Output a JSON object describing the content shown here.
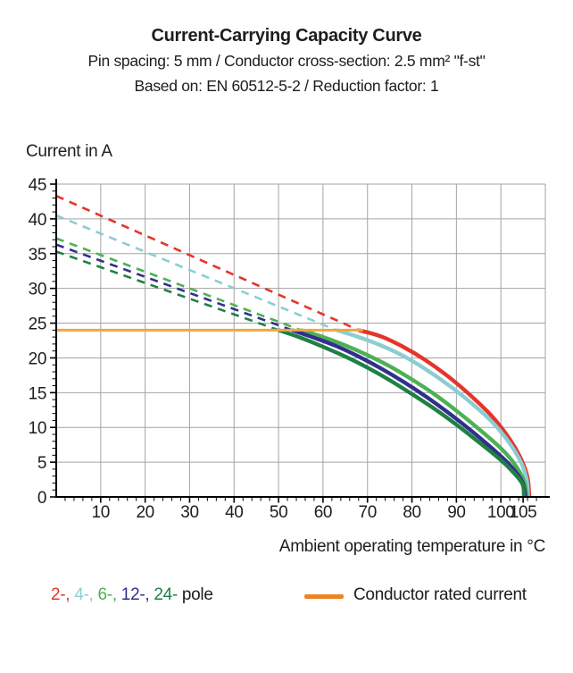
{
  "header": {
    "title": "Current-Carrying Capacity Curve",
    "subtitle1": "Pin spacing: 5 mm / Conductor cross-section: 2.5 mm² \"f-st\"",
    "subtitle2": "Based on: EN 60512-5-2 / Reduction factor: 1"
  },
  "axes": {
    "y_title": "Current in A",
    "x_title": "Ambient operating temperature in °C"
  },
  "legend": {
    "poles": [
      {
        "label": "2-,",
        "color": "#e5352b"
      },
      {
        "label": "4-,",
        "color": "#8ccdd3"
      },
      {
        "label": "6-,",
        "color": "#4db153"
      },
      {
        "label": "12-,",
        "color": "#31308e"
      },
      {
        "label": "24-",
        "color": "#1f8044"
      }
    ],
    "poles_suffix": "pole",
    "rated": {
      "label": "Conductor rated current",
      "color": "#ef8322"
    }
  },
  "chart_data": {
    "type": "line",
    "title": "Current-Carrying Capacity Curve",
    "xlabel": "Ambient operating temperature in °C",
    "ylabel": "Current in A",
    "xlim": [
      0,
      110
    ],
    "ylim": [
      0,
      45
    ],
    "x_tick_labels": [
      10,
      20,
      30,
      40,
      50,
      60,
      70,
      80,
      90,
      100,
      105
    ],
    "y_tick_labels": [
      0,
      5,
      10,
      15,
      20,
      25,
      30,
      35,
      40,
      45
    ],
    "x_grid_step": 10,
    "y_grid_step": 5,
    "x_minor_step": 2,
    "y_minor_step": 1,
    "grid": true,
    "grid_color": "#a3a3a3",
    "axis_color": "#000000",
    "rated_current": {
      "label": "Conductor rated current",
      "value": 24,
      "x_start": 0,
      "x_end": 69,
      "color": "#f5a43c"
    },
    "series": [
      {
        "name": "2-pole",
        "color": "#e5352b",
        "dashed_points": [
          [
            0,
            43.3
          ],
          [
            68,
            24
          ]
        ],
        "solid_points": [
          [
            68,
            24
          ],
          [
            73,
            23.1
          ],
          [
            78,
            21.6
          ],
          [
            83,
            19.7
          ],
          [
            88,
            17.4
          ],
          [
            93,
            14.7
          ],
          [
            98,
            11.6
          ],
          [
            102,
            8.3
          ],
          [
            104.5,
            5.5
          ],
          [
            106,
            2.8
          ],
          [
            106.4,
            0
          ]
        ]
      },
      {
        "name": "4-pole",
        "color": "#8ccdd3",
        "dashed_points": [
          [
            0,
            40.5
          ],
          [
            63,
            24
          ]
        ],
        "solid_points": [
          [
            63,
            24
          ],
          [
            68,
            23.0
          ],
          [
            73,
            21.8
          ],
          [
            78,
            20.3
          ],
          [
            83,
            18.4
          ],
          [
            88,
            16.2
          ],
          [
            93,
            13.7
          ],
          [
            98,
            10.8
          ],
          [
            102,
            7.7
          ],
          [
            104.5,
            5.0
          ],
          [
            105.8,
            2.5
          ],
          [
            106.1,
            0
          ]
        ]
      },
      {
        "name": "6-pole",
        "color": "#4db153",
        "dashed_points": [
          [
            0,
            37.2
          ],
          [
            55,
            24
          ]
        ],
        "solid_points": [
          [
            55,
            24
          ],
          [
            60,
            23.0
          ],
          [
            65,
            21.8
          ],
          [
            70,
            20.4
          ],
          [
            75,
            18.8
          ],
          [
            80,
            16.9
          ],
          [
            85,
            14.8
          ],
          [
            90,
            12.4
          ],
          [
            95,
            9.8
          ],
          [
            100,
            7.0
          ],
          [
            103,
            4.8
          ],
          [
            105.2,
            2.3
          ],
          [
            105.8,
            0
          ]
        ]
      },
      {
        "name": "12-pole",
        "color": "#31308e",
        "dashed_points": [
          [
            0,
            36.3
          ],
          [
            53,
            24
          ]
        ],
        "solid_points": [
          [
            53,
            24
          ],
          [
            58,
            22.9
          ],
          [
            63,
            21.7
          ],
          [
            68,
            20.2
          ],
          [
            73,
            18.5
          ],
          [
            78,
            16.6
          ],
          [
            83,
            14.5
          ],
          [
            88,
            12.2
          ],
          [
            93,
            9.7
          ],
          [
            98,
            7.0
          ],
          [
            102,
            4.6
          ],
          [
            104.8,
            2.2
          ],
          [
            105.5,
            0
          ]
        ]
      },
      {
        "name": "24-pole",
        "color": "#1f8044",
        "dashed_points": [
          [
            0,
            35.3
          ],
          [
            50,
            24
          ]
        ],
        "solid_points": [
          [
            50,
            24
          ],
          [
            55,
            22.9
          ],
          [
            60,
            21.6
          ],
          [
            65,
            20.2
          ],
          [
            70,
            18.6
          ],
          [
            75,
            16.8
          ],
          [
            80,
            14.8
          ],
          [
            85,
            12.7
          ],
          [
            90,
            10.4
          ],
          [
            95,
            7.9
          ],
          [
            100,
            5.3
          ],
          [
            103,
            3.4
          ],
          [
            104.9,
            1.8
          ],
          [
            105.2,
            0
          ]
        ]
      }
    ]
  }
}
